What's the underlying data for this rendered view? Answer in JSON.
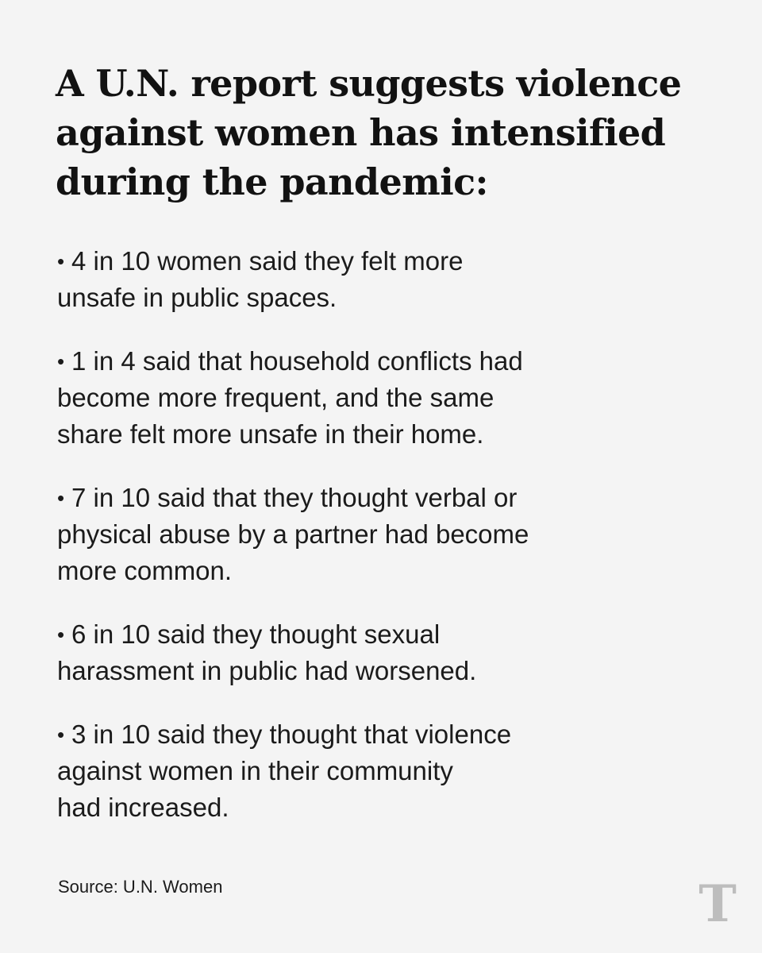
{
  "headline": {
    "lines": [
      "A U.N. report suggests violence",
      "against women has intensified",
      "during the pandemic:"
    ]
  },
  "bullet_symbol": "•",
  "bullets": [
    {
      "lines": [
        "4 in 10 women said they felt more",
        "unsafe in public spaces."
      ]
    },
    {
      "lines": [
        "1 in 4 said that household conflicts had",
        "become more frequent, and the same",
        "share felt more unsafe in their home."
      ]
    },
    {
      "lines": [
        "7 in 10 said that they thought verbal or",
        "physical abuse by a partner had become",
        "more common."
      ]
    },
    {
      "lines": [
        "6 in 10 said they thought sexual",
        "harassment in public had worsened."
      ]
    },
    {
      "lines": [
        "3 in 10 said they thought that violence",
        "against women in their community",
        "had increased."
      ]
    }
  ],
  "source": "Source: U.N. Women",
  "logo": {
    "icon": "nyt-t-logo-icon",
    "glyph": "T",
    "color": "#bdbdbd"
  },
  "colors": {
    "background": "#f4f4f4",
    "text": "#1a1a1a"
  }
}
